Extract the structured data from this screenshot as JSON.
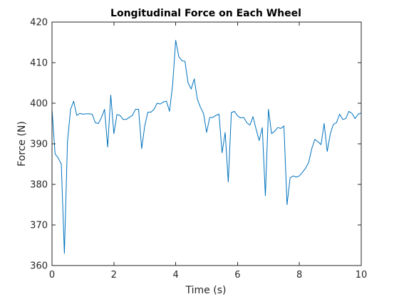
{
  "chart_data": {
    "type": "line",
    "title": "Longitudinal Force on Each Wheel",
    "xlabel": "Time (s)",
    "ylabel": "Force (N)",
    "xlim": [
      0,
      10
    ],
    "ylim": [
      360,
      420
    ],
    "xticks": [
      0,
      2,
      4,
      6,
      8,
      10
    ],
    "yticks": [
      360,
      370,
      380,
      390,
      400,
      410,
      420
    ],
    "grid": false,
    "legend": "none",
    "line_color": "#0072BD",
    "series": [
      {
        "x": [
          0,
          0.1,
          0.2,
          0.3,
          0.4,
          0.5,
          0.6,
          0.7,
          0.8,
          0.9,
          1.0,
          1.1,
          1.2,
          1.3,
          1.4,
          1.5,
          1.6,
          1.7,
          1.8,
          1.9,
          2.0,
          2.1,
          2.2,
          2.3,
          2.4,
          2.5,
          2.6,
          2.7,
          2.8,
          2.9,
          3.0,
          3.1,
          3.2,
          3.3,
          3.4,
          3.5,
          3.6,
          3.7,
          3.8,
          3.9,
          4.0,
          4.1,
          4.2,
          4.3,
          4.4,
          4.5,
          4.6,
          4.7,
          4.8,
          4.9,
          5.0,
          5.1,
          5.2,
          5.3,
          5.4,
          5.5,
          5.6,
          5.7,
          5.8,
          5.9,
          6.0,
          6.1,
          6.2,
          6.3,
          6.4,
          6.5,
          6.6,
          6.7,
          6.8,
          6.9,
          7.0,
          7.1,
          7.2,
          7.3,
          7.4,
          7.5,
          7.6,
          7.7,
          7.8,
          7.9,
          8.0,
          8.1,
          8.2,
          8.3,
          8.4,
          8.5,
          8.6,
          8.7,
          8.8,
          8.9,
          9.0,
          9.1,
          9.2,
          9.3,
          9.4,
          9.5,
          9.6,
          9.7,
          9.8,
          9.9,
          10.0
        ],
        "values": [
          398.5,
          387.5,
          386.5,
          385,
          363,
          390.5,
          398.5,
          400.5,
          397,
          397.5,
          397.3,
          397.4,
          397.4,
          397.3,
          395.2,
          395,
          396.5,
          398.5,
          389.2,
          402,
          392.5,
          397.2,
          397,
          396,
          396,
          396.5,
          397,
          398.5,
          398.5,
          388.8,
          394.5,
          397.8,
          397.8,
          398.5,
          400,
          399.8,
          400.3,
          400.5,
          398,
          404.5,
          415.5,
          411.5,
          410.5,
          410.3,
          405,
          403.5,
          406,
          401,
          399,
          397.5,
          392.8,
          396.5,
          396.5,
          397,
          397.3,
          387.8,
          392.8,
          380.6,
          397.7,
          398,
          396.9,
          396.4,
          396.5,
          395.2,
          394.6,
          396.7,
          393.6,
          390.8,
          394,
          377.2,
          398.5,
          392.5,
          393.1,
          394,
          393.8,
          394.4,
          375,
          381.6,
          382.1,
          381.8,
          382.1,
          383,
          384,
          385.4,
          388.8,
          391.1,
          390.5,
          389.8,
          395,
          388.1,
          392.5,
          394.8,
          395.2,
          397.3,
          396,
          396.2,
          398,
          397.5,
          396.2,
          397.3,
          397.6
        ]
      }
    ]
  }
}
